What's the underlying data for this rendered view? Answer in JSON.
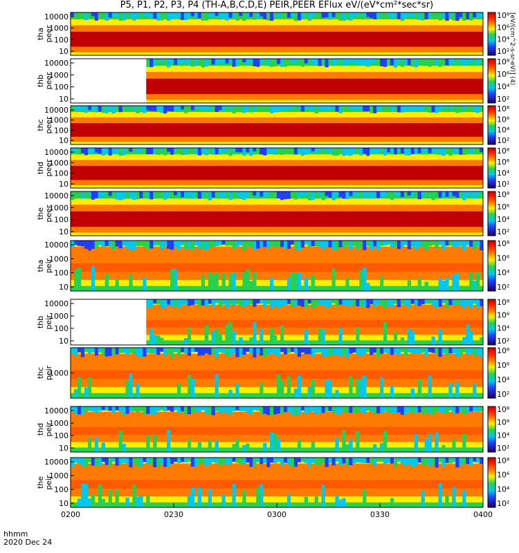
{
  "title": "P5, P1, P2, P3, P4 (TH-A,B,C,D,E) PEIR,PEER EFlux eV/(eV*cm²*sec*sr)",
  "colorbar_label": "[eV/(cm^2-s-sr-eV)] (4)",
  "x_axis": {
    "unit_label": "hhmm",
    "date_label": "2020 Dec 24",
    "ticks": [
      "0200",
      "0230",
      "0300",
      "0330",
      "0400"
    ]
  },
  "colors": {
    "high": "#c00000",
    "mid": "#ff7a00",
    "yellow": "#ffee00",
    "green": "#28d050",
    "cyan": "#00c8e8",
    "blue": "#2040ff",
    "low": "#1a0066"
  },
  "chart_data": {
    "type": "heatmap",
    "time_range": [
      "0200",
      "0400"
    ],
    "panels": [
      {
        "ylabel": [
          "tha",
          "peer"
        ],
        "yticks": [
          "10000",
          "1000",
          "100",
          "10"
        ],
        "cbar_ticks": [
          "10⁸",
          "10⁶",
          "10⁴",
          "10²"
        ]
      },
      {
        "ylabel": [
          "thb",
          "peer"
        ],
        "yticks": [
          "10000",
          "1000",
          "100",
          "10"
        ],
        "cbar_ticks": [
          "10⁸",
          "10⁶",
          "10⁴",
          "10²"
        ],
        "data_gap": [
          "0200",
          "0222"
        ]
      },
      {
        "ylabel": [
          "thc",
          "peer"
        ],
        "yticks": [
          "10000",
          "1000",
          "100",
          "10"
        ],
        "cbar_ticks": [
          "10⁸",
          "10⁶",
          "10⁴",
          "10²"
        ]
      },
      {
        "ylabel": [
          "thd",
          "peer"
        ],
        "yticks": [
          "10000",
          "1000",
          "100",
          "10"
        ],
        "cbar_ticks": [
          "10⁸",
          "10⁶",
          "10⁴",
          "10²"
        ]
      },
      {
        "ylabel": [
          "the",
          "peer"
        ],
        "yticks": [
          "10000",
          "1000",
          "100",
          "10"
        ],
        "cbar_ticks": [
          "10⁸",
          "10⁶",
          "10⁴",
          "10²"
        ]
      },
      {
        "ylabel": [
          "tha",
          "peir"
        ],
        "yticks": [
          "10000",
          "1000",
          "100",
          "10"
        ],
        "cbar_ticks": [
          "10⁸",
          "10⁶",
          "10⁴",
          "10²"
        ]
      },
      {
        "ylabel": [
          "thb",
          "peir"
        ],
        "yticks": [
          "10000",
          "1000",
          "100",
          "10"
        ],
        "cbar_ticks": [
          "10⁸",
          "10⁶",
          "10⁴",
          "10²"
        ],
        "data_gap": [
          "0200",
          "0222"
        ]
      },
      {
        "ylabel": [
          "thc",
          "peir"
        ],
        "yticks": [
          "1000"
        ],
        "cbar_ticks": [
          "10⁸",
          "10⁶",
          "10⁴",
          "10²"
        ]
      },
      {
        "ylabel": [
          "thd",
          "peir"
        ],
        "yticks": [
          "10000",
          "1000",
          "100",
          "10"
        ],
        "cbar_ticks": [
          "10⁸",
          "10⁶",
          "10⁴",
          "10²"
        ]
      },
      {
        "ylabel": [
          "the",
          "peir"
        ],
        "yticks": [
          "10000",
          "1000",
          "100",
          "10"
        ],
        "cbar_ticks": [
          "10⁸",
          "10⁶",
          "10⁴",
          "10²"
        ]
      }
    ]
  }
}
